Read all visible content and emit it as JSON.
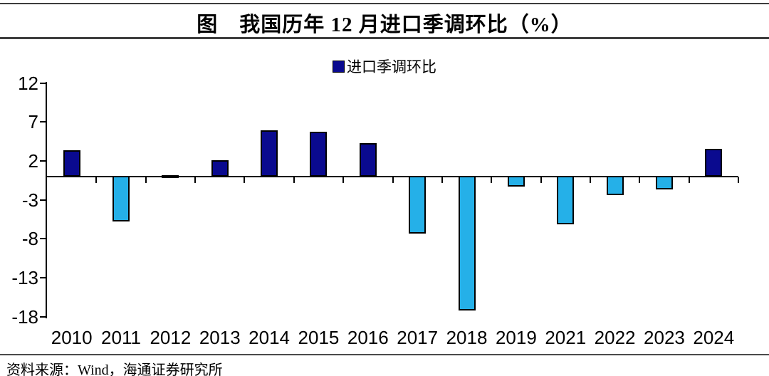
{
  "header": {
    "title": "图　我国历年 12 月进口季调环比（%）"
  },
  "legend": {
    "label": "进口季调环比",
    "swatch_color": "#0a0a8f"
  },
  "chart_data": {
    "type": "bar",
    "title": "我国历年12月进口季调环比（%）",
    "categories": [
      "2010",
      "2011",
      "2012",
      "2013",
      "2014",
      "2015",
      "2016",
      "2017",
      "2018",
      "2019",
      "2021",
      "2022",
      "2023",
      "2024"
    ],
    "values": [
      3.4,
      -5.8,
      0.2,
      2.1,
      5.9,
      5.7,
      4.3,
      -7.3,
      -17.2,
      -1.3,
      -6.2,
      -2.4,
      -1.7,
      3.5
    ],
    "series_name": "进口季调环比",
    "ylabel": "",
    "xlabel": "",
    "yticks": [
      12,
      7,
      2,
      -3,
      -8,
      -13,
      -18
    ],
    "ylim": [
      -18,
      12
    ],
    "grid": false,
    "legend_position": "top-center",
    "colors": {
      "positive": "#0a0a8f",
      "negative": "#25b0e8",
      "bar_border": "#000000",
      "axis": "#000000"
    }
  },
  "footer": {
    "source": "资料来源：Wind，海通证券研究所"
  }
}
